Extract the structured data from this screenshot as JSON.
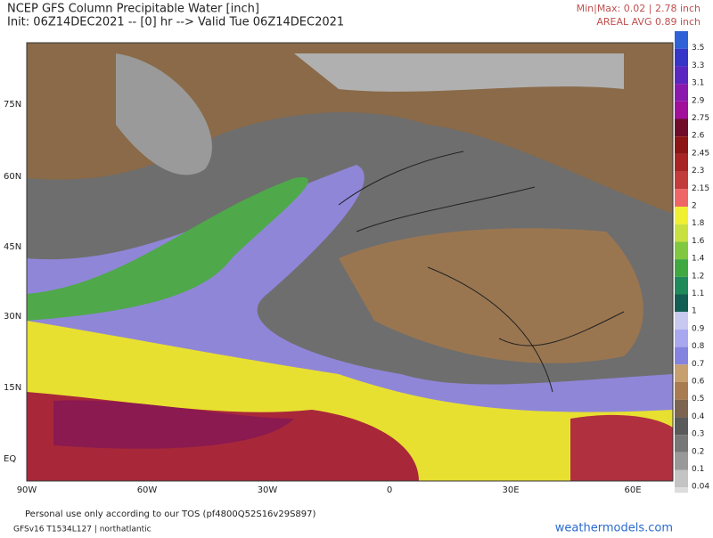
{
  "header": {
    "title": "NCEP GFS Column Precipitable Water [inch]",
    "init": "Init: 06Z14DEC2021 -- [0] hr --> Valid Tue 06Z14DEC2021"
  },
  "stats": {
    "minmax": "Min|Max: 0.02 | 2.78 inch",
    "areal": "AREAL AVG 0.89 inch"
  },
  "map": {
    "lat_labels": [
      "75N",
      "60N",
      "45N",
      "30N",
      "15N",
      "EQ"
    ],
    "lon_labels": [
      "90W",
      "60W",
      "30W",
      "0",
      "30E",
      "60E"
    ]
  },
  "colorbar": {
    "labels": [
      "3.5",
      "3.3",
      "3.1",
      "2.9",
      "2.75",
      "2.6",
      "2.45",
      "2.3",
      "2.15",
      "2",
      "1.8",
      "1.6",
      "1.4",
      "1.2",
      "1.1",
      "1",
      "0.9",
      "0.8",
      "0.7",
      "0.6",
      "0.5",
      "0.4",
      "0.3",
      "0.2",
      "0.1",
      "0.04"
    ],
    "colors": [
      "#2f62d6",
      "#3535c8",
      "#5a28c0",
      "#8a1aae",
      "#a0109a",
      "#6e0c2a",
      "#8c1414",
      "#a82424",
      "#c23c3c",
      "#ee6666",
      "#f0f030",
      "#c8e040",
      "#80c840",
      "#40a840",
      "#1f8a5a",
      "#135e52",
      "#c8c8f0",
      "#a8a8f0",
      "#8484e0",
      "#c8a070",
      "#a87c50",
      "#7c6450",
      "#5a5a5a",
      "#777777",
      "#999999",
      "#c4c4c4"
    ]
  },
  "footer": {
    "tos": "Personal use only according to our TOS (pf4800Q52S16v29S897)",
    "model": "GFSv16 T1534L127 | northatlantic",
    "site": "weathermodels.com"
  }
}
